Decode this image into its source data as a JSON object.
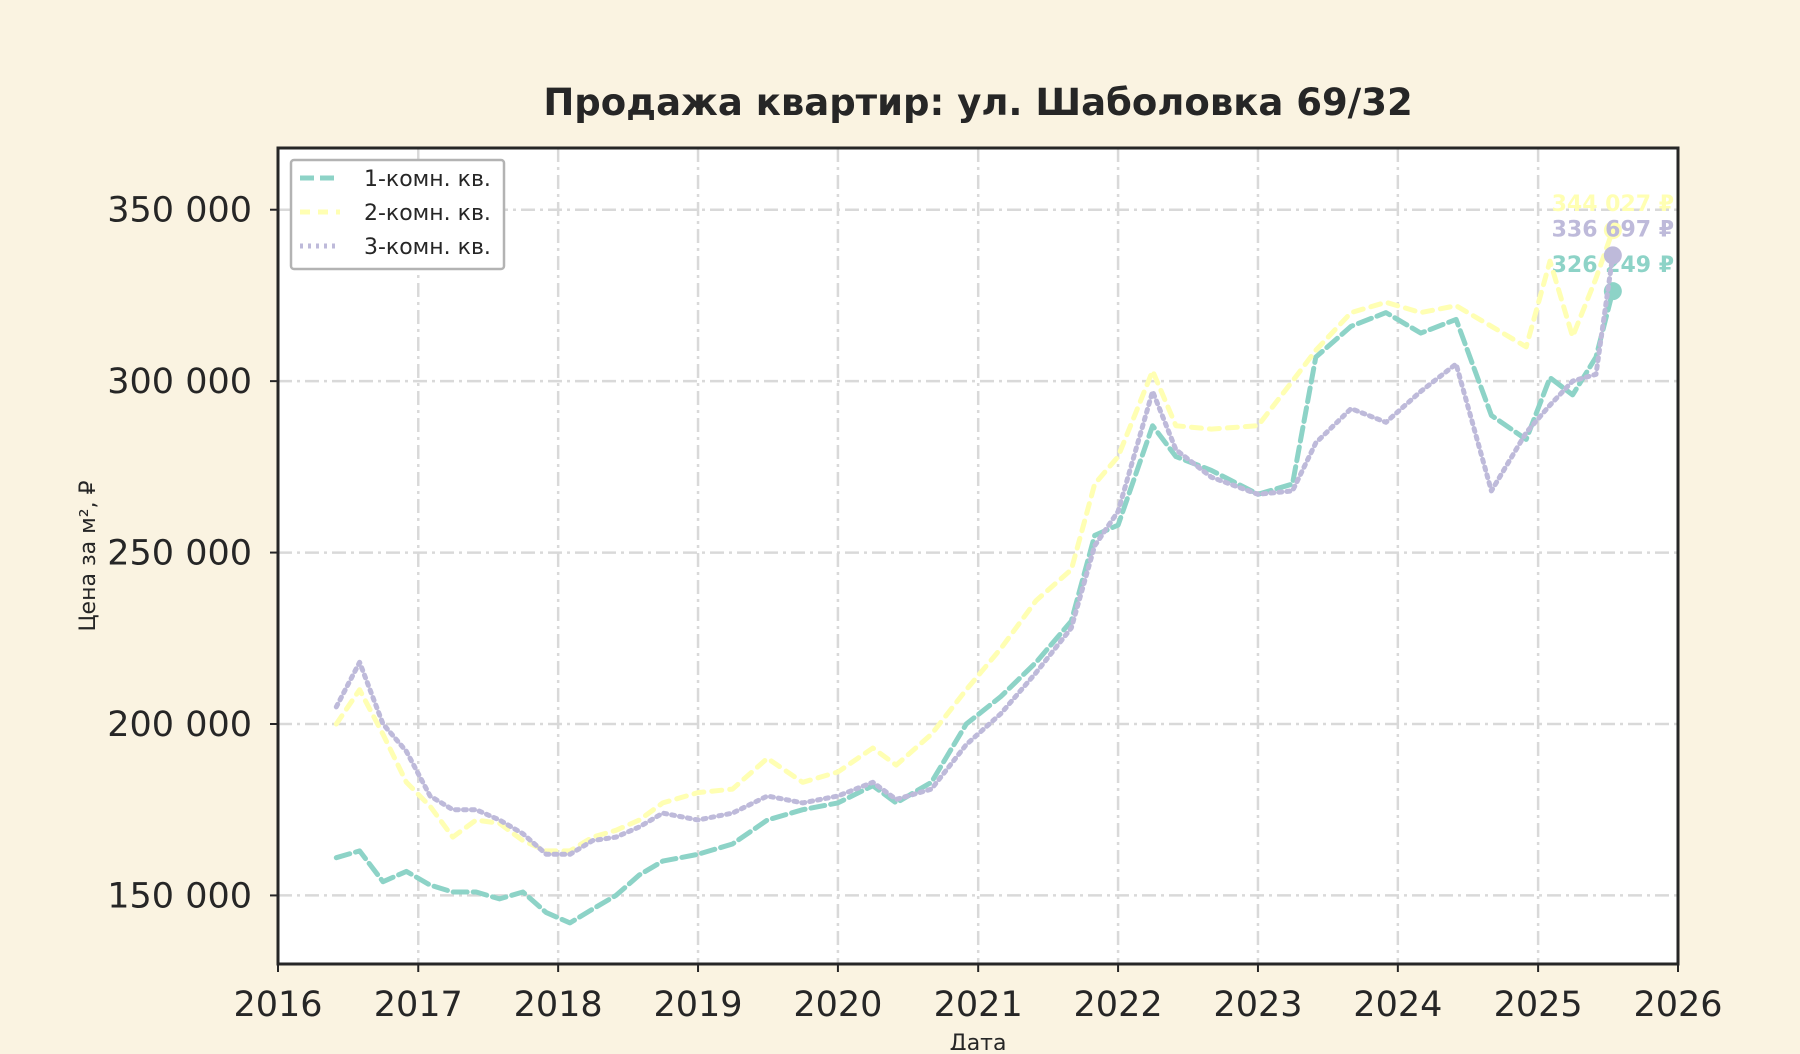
{
  "chart_data": {
    "type": "line",
    "title": "Продажа квартир: ул. Шаболовка 69/32",
    "xlabel": "Дата",
    "ylabel": "Цена за м², ₽",
    "xlim": [
      "2016-01-01",
      "2026-01-01"
    ],
    "ylim": [
      130000,
      368000
    ],
    "x_ticks": [
      "2016",
      "2017",
      "2018",
      "2019",
      "2020",
      "2021",
      "2022",
      "2023",
      "2024",
      "2025",
      "2026"
    ],
    "y_ticks": [
      150000,
      200000,
      250000,
      300000,
      350000
    ],
    "y_tick_labels": [
      "150 000",
      "200 000",
      "250 000",
      "300 000",
      "350 000"
    ],
    "grid": true,
    "legend": "top-left",
    "colors": {
      "background": "#faf3e1",
      "plot_area": "#ffffff",
      "grid": "#d9d9d9",
      "frame": "#262626",
      "text": "#262626"
    },
    "series": [
      {
        "name": "1-комн. кв.",
        "color": "#8dd3c7",
        "dash": "14 6",
        "end_label": "326 249 ₽",
        "x": [
          "2016-06-01",
          "2016-08-01",
          "2016-10-01",
          "2016-12-01",
          "2017-02-01",
          "2017-04-01",
          "2017-06-01",
          "2017-08-01",
          "2017-10-01",
          "2017-12-01",
          "2018-02-01",
          "2018-04-01",
          "2018-06-01",
          "2018-08-01",
          "2018-10-01",
          "2019-01-01",
          "2019-04-01",
          "2019-07-01",
          "2019-10-01",
          "2020-01-01",
          "2020-04-01",
          "2020-06-01",
          "2020-09-01",
          "2020-12-01",
          "2021-03-01",
          "2021-06-01",
          "2021-09-01",
          "2021-11-01",
          "2022-01-01",
          "2022-04-01",
          "2022-06-01",
          "2022-09-01",
          "2023-01-01",
          "2023-04-01",
          "2023-06-01",
          "2023-09-01",
          "2023-12-01",
          "2024-03-01",
          "2024-06-01",
          "2024-09-01",
          "2024-12-01",
          "2025-02-01",
          "2025-04-01",
          "2025-06-01",
          "2025-07-15"
        ],
        "y": [
          161000,
          163000,
          154000,
          157000,
          153000,
          151000,
          151000,
          149000,
          151000,
          145000,
          142000,
          146000,
          150000,
          156000,
          160000,
          162000,
          165000,
          172000,
          175000,
          177000,
          182000,
          177000,
          183000,
          200000,
          208000,
          218000,
          230000,
          255000,
          258000,
          287000,
          278000,
          274000,
          267000,
          270000,
          307000,
          316000,
          320000,
          314000,
          318000,
          290000,
          283000,
          301000,
          296000,
          307000,
          326249
        ]
      },
      {
        "name": "2-комн. кв.",
        "color": "#ffffb3",
        "dash": "10 8",
        "end_label": "344 027 ₽",
        "x": [
          "2016-06-01",
          "2016-08-01",
          "2016-10-01",
          "2016-12-01",
          "2017-02-01",
          "2017-04-01",
          "2017-06-01",
          "2017-08-01",
          "2017-10-01",
          "2017-12-01",
          "2018-02-01",
          "2018-04-01",
          "2018-06-01",
          "2018-08-01",
          "2018-10-01",
          "2019-01-01",
          "2019-04-01",
          "2019-07-01",
          "2019-10-01",
          "2020-01-01",
          "2020-04-01",
          "2020-06-01",
          "2020-09-01",
          "2020-12-01",
          "2021-03-01",
          "2021-06-01",
          "2021-09-01",
          "2021-11-01",
          "2022-01-01",
          "2022-04-01",
          "2022-06-01",
          "2022-09-01",
          "2023-01-01",
          "2023-04-01",
          "2023-06-01",
          "2023-09-01",
          "2023-12-01",
          "2024-03-01",
          "2024-06-01",
          "2024-09-01",
          "2024-12-01",
          "2025-02-01",
          "2025-04-01",
          "2025-06-01",
          "2025-07-15"
        ],
        "y": [
          200000,
          210000,
          197000,
          183000,
          176000,
          167000,
          172000,
          171000,
          166000,
          163000,
          163000,
          167000,
          169000,
          172000,
          177000,
          180000,
          181000,
          190000,
          183000,
          186000,
          193000,
          188000,
          197000,
          210000,
          222000,
          236000,
          245000,
          270000,
          278000,
          303000,
          287000,
          286000,
          287000,
          300000,
          309000,
          320000,
          323000,
          320000,
          322000,
          316000,
          310000,
          335000,
          313000,
          330000,
          344027
        ]
      },
      {
        "name": "3-комн. кв.",
        "color": "#bebada",
        "dash": "3 5",
        "end_label": "336 697 ₽",
        "x": [
          "2016-06-01",
          "2016-08-01",
          "2016-10-01",
          "2016-12-01",
          "2017-02-01",
          "2017-04-01",
          "2017-06-01",
          "2017-08-01",
          "2017-10-01",
          "2017-12-01",
          "2018-02-01",
          "2018-04-01",
          "2018-06-01",
          "2018-08-01",
          "2018-10-01",
          "2019-01-01",
          "2019-04-01",
          "2019-07-01",
          "2019-10-01",
          "2020-01-01",
          "2020-04-01",
          "2020-06-01",
          "2020-09-01",
          "2020-12-01",
          "2021-03-01",
          "2021-06-01",
          "2021-09-01",
          "2021-11-01",
          "2022-01-01",
          "2022-04-01",
          "2022-06-01",
          "2022-09-01",
          "2023-01-01",
          "2023-04-01",
          "2023-06-01",
          "2023-09-01",
          "2023-12-01",
          "2024-03-01",
          "2024-06-01",
          "2024-09-01",
          "2024-12-01",
          "2025-02-01",
          "2025-04-01",
          "2025-06-01",
          "2025-07-15"
        ],
        "y": [
          205000,
          218000,
          200000,
          192000,
          179000,
          175000,
          175000,
          172000,
          168000,
          162000,
          162000,
          166000,
          167000,
          170000,
          174000,
          172000,
          174000,
          179000,
          177000,
          179000,
          183000,
          178000,
          181000,
          194000,
          203000,
          215000,
          228000,
          252000,
          262000,
          297000,
          280000,
          272000,
          267000,
          268000,
          282000,
          292000,
          288000,
          297000,
          305000,
          268000,
          285000,
          293000,
          300000,
          302000,
          336697
        ]
      }
    ]
  }
}
